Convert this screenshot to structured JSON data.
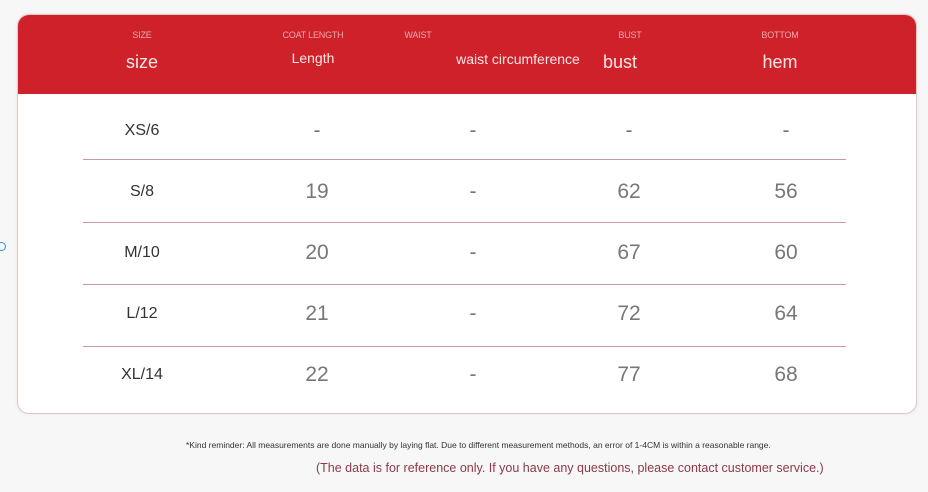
{
  "table": {
    "columns": [
      {
        "small": "SIZE",
        "label": "size"
      },
      {
        "small": "COAT LENGTH",
        "label": "Length"
      },
      {
        "small": "WAIST",
        "label": "waist circumference"
      },
      {
        "small": "BUST",
        "label": "bust"
      },
      {
        "small": "BOTTOM",
        "label": "hem"
      }
    ],
    "rows": [
      [
        "XS/6",
        "-",
        "-",
        "-",
        "-"
      ],
      [
        "S/8",
        "19",
        "-",
        "62",
        "56"
      ],
      [
        "M/10",
        "20",
        "-",
        "67",
        "60"
      ],
      [
        "L/12",
        "21",
        "-",
        "72",
        "64"
      ],
      [
        "XL/14",
        "22",
        "-",
        "77",
        "68"
      ]
    ]
  },
  "notes": {
    "reminder": "*Kind reminder: All measurements are done manually by laying flat. Due to different measurement methods, an error of 1-4CM is within a reasonable range.",
    "reference": "(The data is for reference only. If you have any questions, please contact customer service.)"
  },
  "colors": {
    "header": "#cf2129",
    "divider": "#c79a9c"
  }
}
